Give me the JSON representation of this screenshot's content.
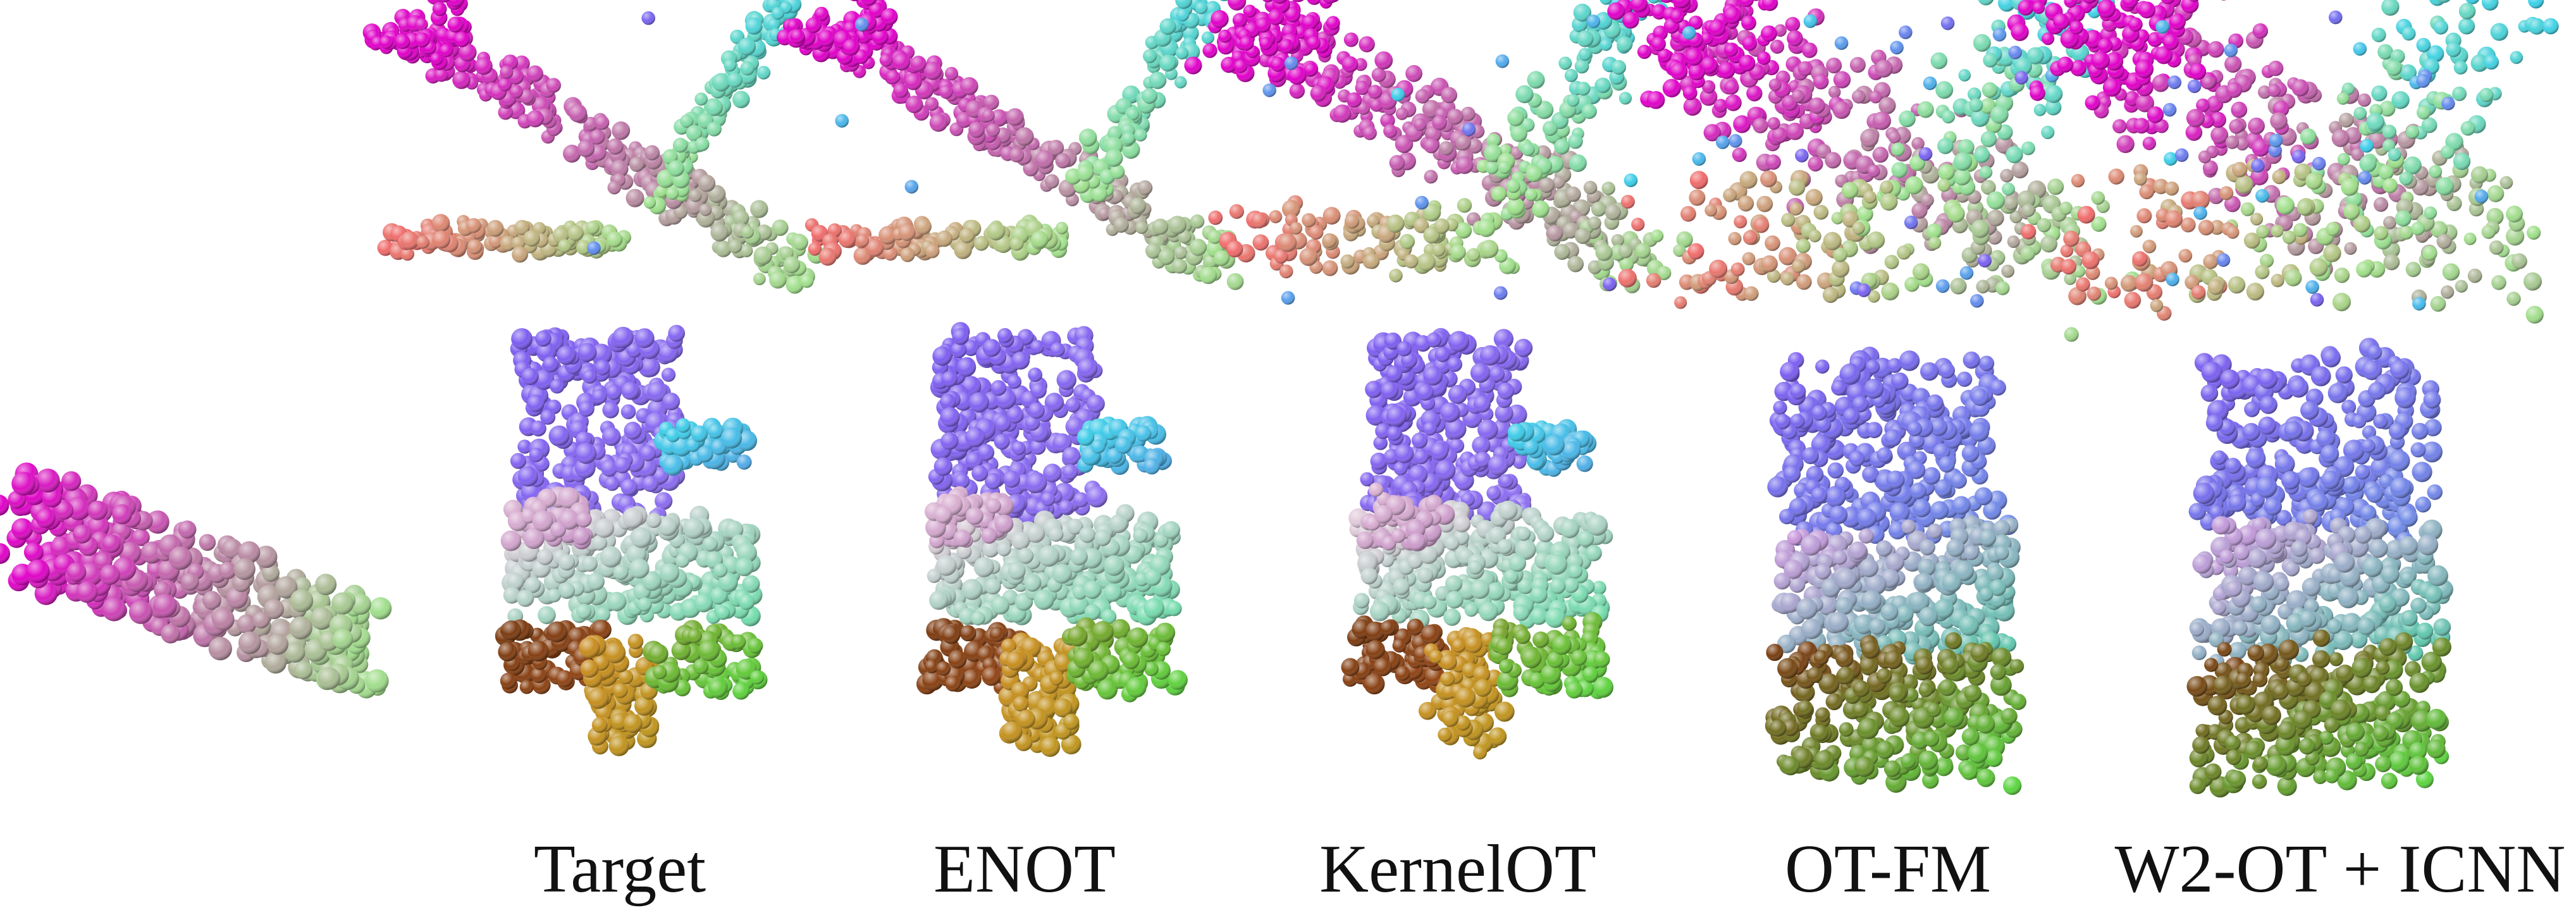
{
  "figure": {
    "columns": [
      {
        "id": "source",
        "caption": ""
      },
      {
        "id": "target",
        "caption": "Target"
      },
      {
        "id": "enot",
        "caption": "ENOT"
      },
      {
        "id": "kernelot",
        "caption": "KernelOT"
      },
      {
        "id": "otfm",
        "caption": "OT-FM"
      },
      {
        "id": "w2ot",
        "caption": "W2-OT + ICNN"
      }
    ],
    "rows": [
      "airplane",
      "chair"
    ],
    "palette": {
      "tail": "#e000c8",
      "nose": "#3ad0e8",
      "wing": "#f06a6a",
      "body": "#9fe08a",
      "seat": "#7b5cf0",
      "legs": "#7a3a10",
      "wheels": "#5ad840"
    }
  }
}
